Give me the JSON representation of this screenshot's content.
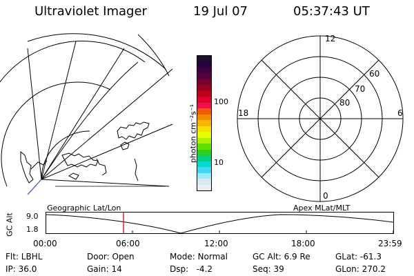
{
  "header": {
    "title": "Ultraviolet Imager",
    "date": "19 Jul 07",
    "time": "05:37:43 UT"
  },
  "colorbar": {
    "label": "photon cm⁻²s⁻¹",
    "ticks": [
      "100",
      "10"
    ],
    "colors": [
      "#1e0f35",
      "#2a0040",
      "#3e0048",
      "#5a0040",
      "#7a0030",
      "#9a0020",
      "#c00018",
      "#e0002c",
      "#f0104a",
      "#f05a00",
      "#f58a00",
      "#f8b400",
      "#f5e000",
      "#e6ff00",
      "#aaf000",
      "#60e000",
      "#28d028",
      "#00d080",
      "#00d8d0",
      "#40d8f0",
      "#a0e8f5",
      "#d8e8f0",
      "#e8eef2"
    ]
  },
  "polar_plot": {
    "mlt_labels": [
      "12",
      "18",
      "6",
      "0"
    ],
    "lat_labels": [
      "60",
      "70",
      "80"
    ]
  },
  "timeline": {
    "left_label": "Geographic Lat/Lon",
    "right_label": "Apex MLat/MLT",
    "axis_label": "GC Alt",
    "y_ticks": [
      "9.0",
      "1.8"
    ],
    "x_ticks": [
      "00:00",
      "06:00",
      "12:00",
      "18:00",
      "23:59"
    ],
    "current_time_marker": "05:37:43"
  },
  "status": {
    "flt": "Flt: LBHL",
    "ip": "IP: 36.0",
    "door": "Door: Open",
    "gain": "Gain: 14",
    "mode": "Mode: Normal",
    "dsp": "Dsp:   -4.2",
    "gc_alt": "GC Alt: 6.9 Re",
    "seq": "Seq: 39",
    "glat": "GLat: -61.3",
    "glon": "GLon: 270.2"
  }
}
